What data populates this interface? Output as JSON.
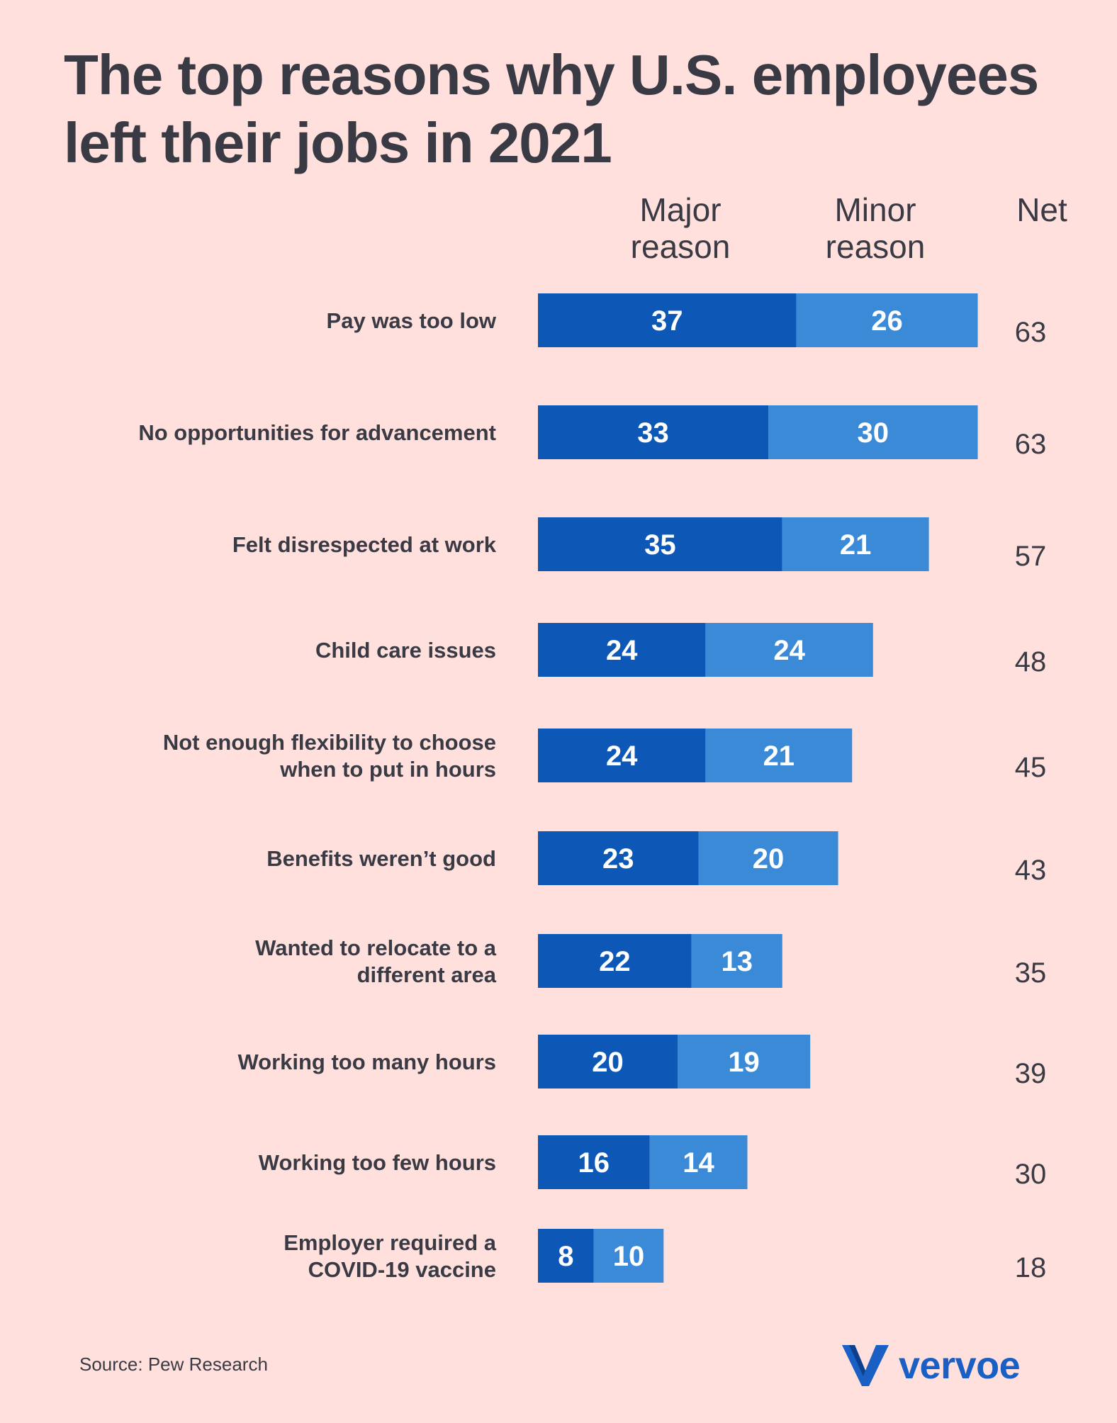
{
  "title_line1": "The top reasons why U.S. employees",
  "title_line2": "left their jobs in 2021",
  "columns": {
    "major_line1": "Major",
    "major_line2": "reason",
    "minor_line1": "Minor",
    "minor_line2": "reason",
    "net": "Net"
  },
  "colors": {
    "major": "#0d58b7",
    "minor": "#3b8ad8",
    "text": "#3a3a44",
    "background": "#ffe0dd"
  },
  "chart_data": {
    "type": "bar",
    "orientation": "horizontal",
    "stacked": true,
    "categories": [
      [
        "Pay was too low"
      ],
      [
        "No opportunities for advancement"
      ],
      [
        "Felt disrespected at work"
      ],
      [
        "Child care issues"
      ],
      [
        "Not enough flexibility to choose",
        "when to put in hours"
      ],
      [
        "Benefits weren’t good"
      ],
      [
        "Wanted to relocate to a",
        "different area"
      ],
      [
        "Working too many hours"
      ],
      [
        "Working too few hours"
      ],
      [
        "Employer required a",
        "COVID-19 vaccine"
      ]
    ],
    "series": [
      {
        "name": "Major reason",
        "values": [
          37,
          33,
          35,
          24,
          24,
          23,
          22,
          20,
          16,
          8
        ]
      },
      {
        "name": "Minor reason",
        "values": [
          26,
          30,
          21,
          24,
          21,
          20,
          13,
          19,
          14,
          10
        ]
      }
    ],
    "net": [
      63,
      63,
      57,
      48,
      45,
      43,
      35,
      39,
      30,
      18
    ]
  },
  "source": "Source: Pew Research",
  "logo": {
    "text": "vervoe",
    "icon": "vervoe-v-logo-icon"
  }
}
